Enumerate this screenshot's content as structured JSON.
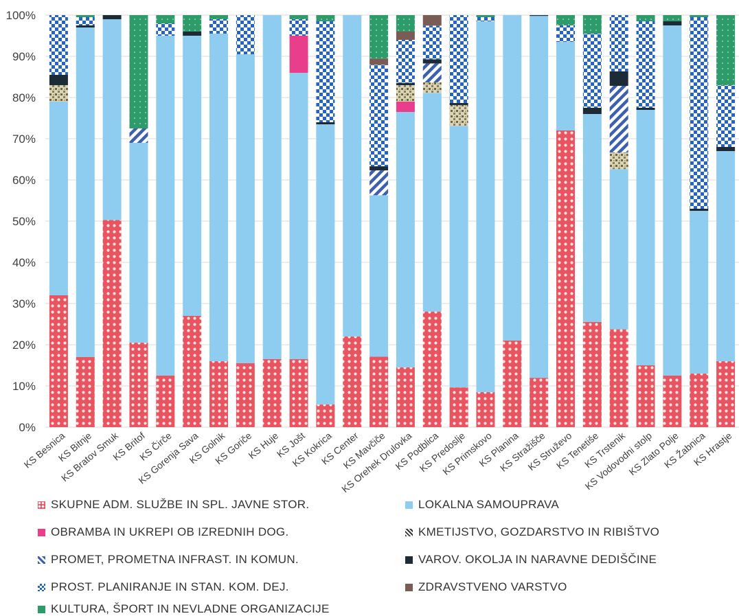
{
  "chart_data": {
    "type": "bar",
    "stacked": "percent",
    "yticks": [
      "0%",
      "10%",
      "20%",
      "30%",
      "40%",
      "50%",
      "60%",
      "70%",
      "80%",
      "90%",
      "100%"
    ],
    "ylim": [
      0,
      100
    ],
    "categories": [
      "KS Besnica",
      "KS Bitnje",
      "KS Bratov Smuk",
      "KS Britof",
      "KS Čirče",
      "KS Gorenja Sava",
      "KS Golnik",
      "KS Goriče",
      "KS Huje",
      "KS Jošt",
      "KS Kokrica",
      "KS Center",
      "KS Mavčiče",
      "KS Orehek Drulovka",
      "KS Podblica",
      "KS Predoslje",
      "KS Primskovo",
      "KS Planina",
      "KS Stražišče",
      "KS Struževo",
      "KS Tenetiše",
      "KS Trstenik",
      "KS Vodovodni stolp",
      "KS Zlato Polje",
      "KS Žabnica",
      "KS Hrastje"
    ],
    "series": [
      {
        "name": "SKUPNE ADM. SLUŽBE IN SPL. JAVNE STOR.",
        "color": "#e8545f",
        "pattern": "dots",
        "values": [
          32,
          17,
          50,
          20.5,
          12.5,
          27,
          16,
          15.5,
          16.5,
          16.5,
          5.5,
          22,
          17,
          14.5,
          27.5,
          9.5,
          8.5,
          21,
          12,
          72,
          25.5,
          23.5,
          15,
          12.5,
          13,
          16
        ]
      },
      {
        "name": "LOKALNA SAMOUPRAVA",
        "color": "#8fcdf0",
        "pattern": "solid",
        "values": [
          47,
          80,
          48.5,
          48.5,
          82.5,
          68,
          79.5,
          75,
          83.5,
          69.5,
          68,
          78,
          39,
          62,
          52,
          62.5,
          90,
          79,
          88,
          21.5,
          50.5,
          38.5,
          62,
          85,
          39.5,
          51
        ]
      },
      {
        "name": "OBRAMBA IN UKREPI OB IZREDNIH DOG.",
        "color": "#e83e8c",
        "pattern": "solid",
        "values": [
          0,
          0,
          0,
          0,
          0,
          0,
          0,
          0,
          0,
          9,
          0,
          0,
          0,
          2.5,
          0,
          0,
          0,
          0,
          0,
          0,
          0,
          0,
          0,
          0,
          0,
          0
        ]
      },
      {
        "name": "KMETIJSTVO, GOZDARSTVO IN RIBIŠTVO",
        "color": "#9c8c5a",
        "pattern": "mottled",
        "values": [
          4,
          0,
          0,
          0,
          0,
          0,
          0,
          0,
          0,
          0,
          0,
          0,
          0,
          4,
          2.5,
          5,
          0,
          0,
          0,
          0,
          0,
          4,
          0,
          0,
          0,
          0
        ]
      },
      {
        "name": "PROMET, PROMETNA INFRAST. IN KOMUN.",
        "color": "#3d5fb0",
        "pattern": "stripes",
        "values": [
          0,
          0,
          0,
          3.5,
          0,
          0,
          0,
          0,
          0,
          0,
          0,
          0,
          6,
          0,
          4.5,
          0,
          0,
          0,
          0,
          0,
          0,
          16,
          0,
          0,
          0,
          0
        ]
      },
      {
        "name": "VAROV. OKOLJA IN NARAVNE DEDIŠČINE",
        "color": "#1c2b36",
        "pattern": "solid",
        "values": [
          2.5,
          0.5,
          1,
          0,
          0,
          1,
          0,
          0,
          0,
          0,
          0.5,
          0,
          1,
          0.5,
          1,
          0.5,
          0,
          0,
          0.2,
          0,
          1.5,
          3.5,
          0.5,
          1,
          0.5,
          1
        ]
      },
      {
        "name": "PROST. PLANIRANJE IN STAN. KOM. DEJ.",
        "color": "#2464c8",
        "pattern": "check",
        "values": [
          14.5,
          2,
          0,
          0,
          3,
          0,
          3.5,
          9.5,
          0,
          4,
          24.5,
          0,
          24.5,
          10.5,
          8,
          21,
          1,
          0,
          0,
          4,
          18,
          13.5,
          21,
          0,
          46.5,
          15
        ]
      },
      {
        "name": "ZDRAVSTVENO VARSTVO",
        "color": "#7a5c55",
        "pattern": "solid",
        "values": [
          0,
          0,
          0,
          0,
          0,
          0,
          0,
          0,
          0,
          0,
          0,
          0,
          1.5,
          2,
          2.5,
          0,
          0,
          0,
          0,
          0,
          0,
          0,
          0,
          0,
          0,
          0
        ]
      },
      {
        "name": "KULTURA, ŠPORT IN NEVLADNE ORGANIZACIJE",
        "color": "#2e9c6a",
        "pattern": "dotted-green",
        "values": [
          0,
          0.5,
          0,
          27.5,
          2,
          4,
          1,
          0,
          0,
          1,
          1.5,
          0,
          10.5,
          4,
          0,
          0,
          0.5,
          0,
          0,
          2.5,
          4.5,
          0,
          1.5,
          1.5,
          0.5,
          17
        ]
      }
    ]
  }
}
